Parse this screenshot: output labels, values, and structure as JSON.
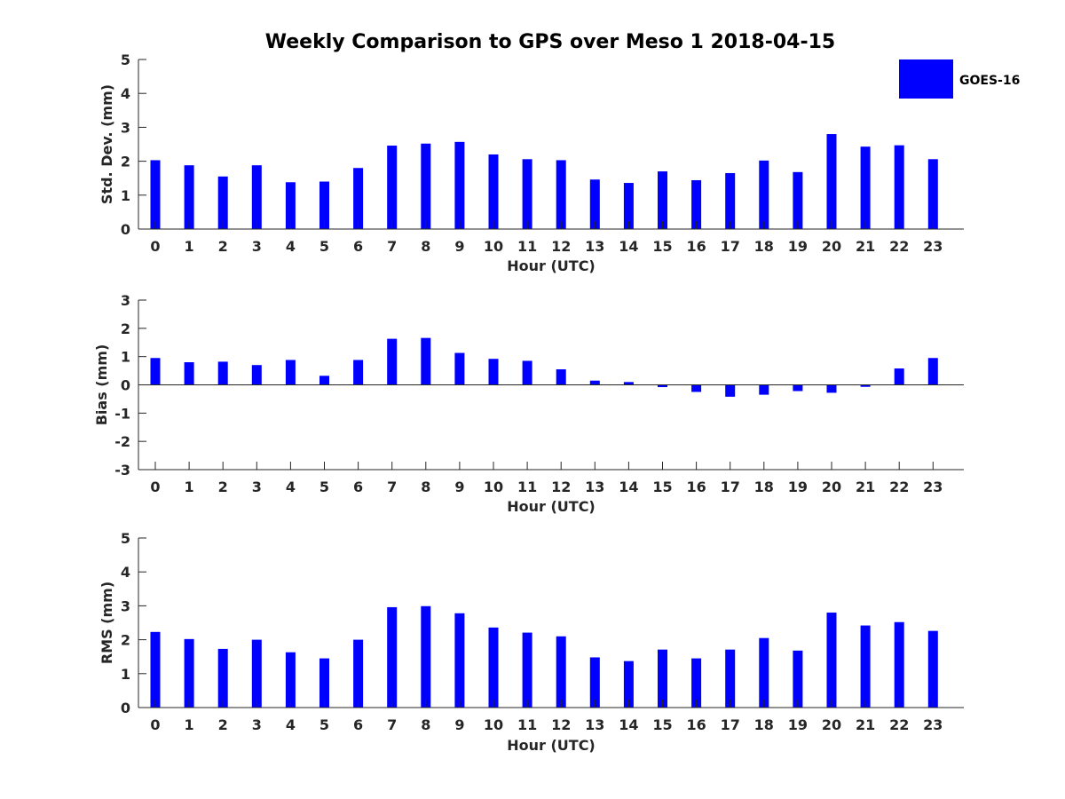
{
  "title": "Weekly Comparison to GPS over Meso 1 2018-04-15",
  "legend": {
    "label": "GOES-16",
    "color": "#0000ff",
    "placement": "top-right"
  },
  "chart_data": [
    {
      "type": "bar",
      "title": "Weekly Comparison to GPS over Meso 1 2018-04-15",
      "xlabel": "Hour (UTC)",
      "ylabel": "Std. Dev. (mm)",
      "ylim": [
        0,
        5
      ],
      "yticks": [
        "0",
        "1",
        "2",
        "3",
        "4",
        "5"
      ],
      "categories": [
        "0",
        "1",
        "2",
        "3",
        "4",
        "5",
        "6",
        "7",
        "8",
        "9",
        "10",
        "11",
        "12",
        "13",
        "14",
        "15",
        "16",
        "17",
        "18",
        "19",
        "20",
        "21",
        "22",
        "23"
      ],
      "series": [
        {
          "name": "GOES-16",
          "values": [
            2.03,
            1.88,
            1.55,
            1.88,
            1.38,
            1.4,
            1.8,
            2.46,
            2.52,
            2.57,
            2.2,
            2.06,
            2.03,
            1.46,
            1.36,
            1.7,
            1.44,
            1.65,
            2.02,
            1.68,
            2.8,
            2.43,
            2.47,
            2.06
          ]
        }
      ]
    },
    {
      "type": "bar",
      "xlabel": "Hour (UTC)",
      "ylabel": "Bias (mm)",
      "ylim": [
        -3,
        3
      ],
      "yticks": [
        "-3",
        "-2",
        "-1",
        "0",
        "1",
        "2",
        "3"
      ],
      "categories": [
        "0",
        "1",
        "2",
        "3",
        "4",
        "5",
        "6",
        "7",
        "8",
        "9",
        "10",
        "11",
        "12",
        "13",
        "14",
        "15",
        "16",
        "17",
        "18",
        "19",
        "20",
        "21",
        "22",
        "23"
      ],
      "series": [
        {
          "name": "GOES-16",
          "values": [
            0.95,
            0.8,
            0.82,
            0.7,
            0.88,
            0.32,
            0.88,
            1.63,
            1.66,
            1.13,
            0.92,
            0.85,
            0.55,
            0.15,
            0.1,
            -0.08,
            -0.25,
            -0.42,
            -0.35,
            -0.22,
            -0.28,
            -0.07,
            0.58,
            0.95
          ]
        }
      ]
    },
    {
      "type": "bar",
      "xlabel": "Hour (UTC)",
      "ylabel": "RMS (mm)",
      "ylim": [
        0,
        5
      ],
      "yticks": [
        "0",
        "1",
        "2",
        "3",
        "4",
        "5"
      ],
      "categories": [
        "0",
        "1",
        "2",
        "3",
        "4",
        "5",
        "6",
        "7",
        "8",
        "9",
        "10",
        "11",
        "12",
        "13",
        "14",
        "15",
        "16",
        "17",
        "18",
        "19",
        "20",
        "21",
        "22",
        "23"
      ],
      "series": [
        {
          "name": "GOES-16",
          "values": [
            2.23,
            2.02,
            1.73,
            2.0,
            1.63,
            1.45,
            2.0,
            2.96,
            2.99,
            2.78,
            2.36,
            2.21,
            2.1,
            1.48,
            1.37,
            1.71,
            1.45,
            1.71,
            2.05,
            1.68,
            2.8,
            2.42,
            2.52,
            2.26
          ]
        }
      ]
    }
  ]
}
